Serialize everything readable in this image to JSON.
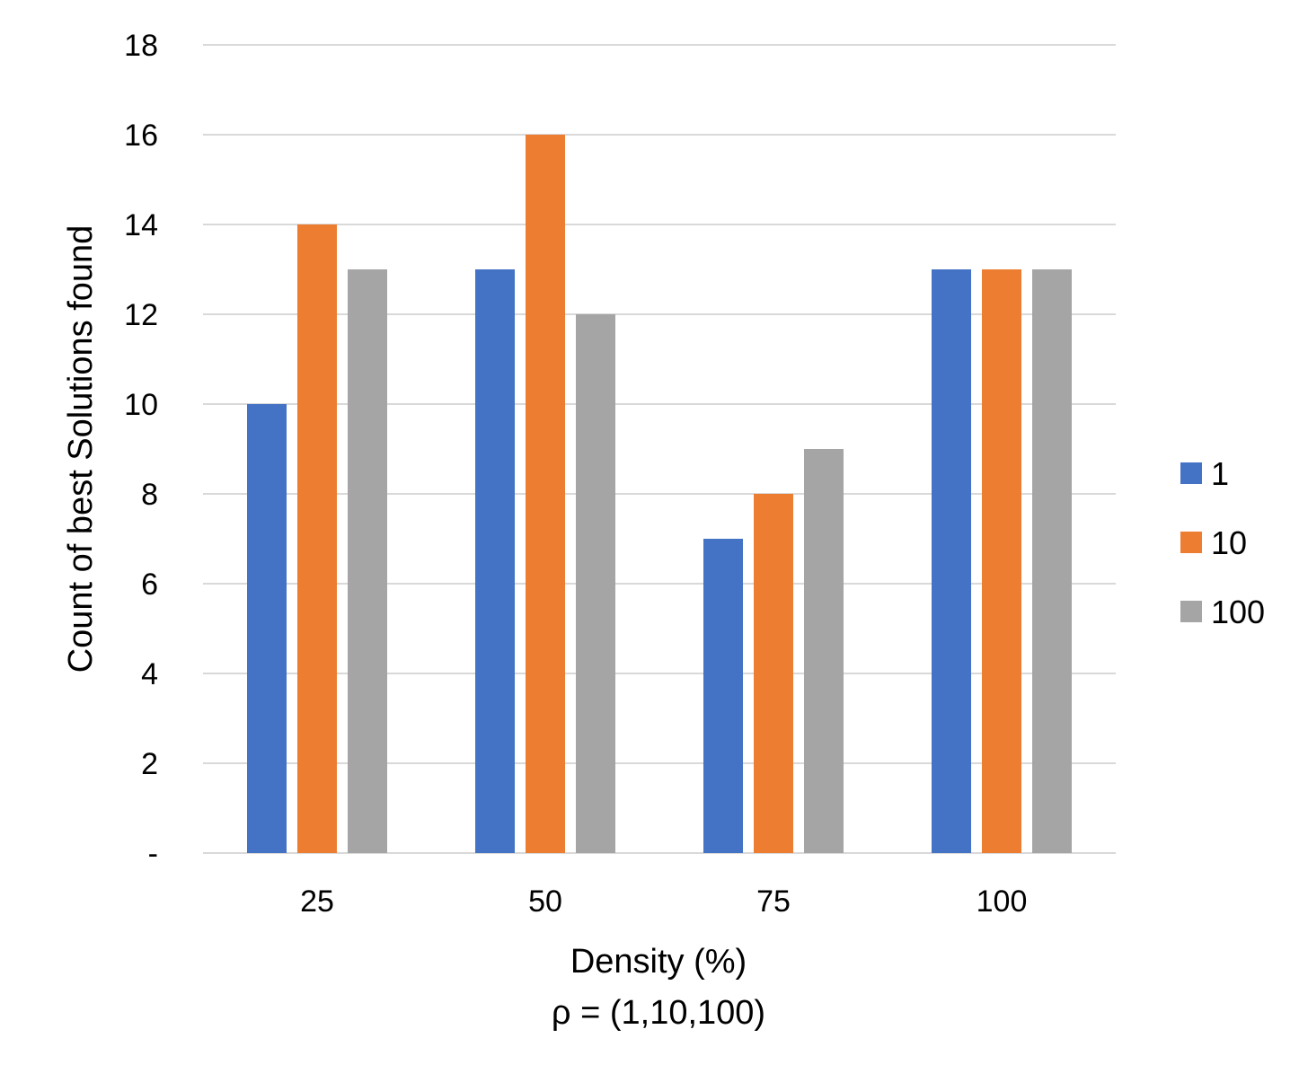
{
  "chart_data": {
    "type": "bar",
    "title": "",
    "xlabel": "Density (%)",
    "xlabel_sub": "ρ = (1,10,100)",
    "ylabel": "Count of best Solutions found",
    "categories": [
      "25",
      "50",
      "75",
      "100"
    ],
    "series": [
      {
        "name": "1",
        "values": [
          10,
          13,
          7,
          13
        ],
        "color": "#4472C4"
      },
      {
        "name": "10",
        "values": [
          14,
          16,
          8,
          13
        ],
        "color": "#ED7D31"
      },
      {
        "name": "100",
        "values": [
          13,
          12,
          9,
          13
        ],
        "color": "#A5A5A5"
      }
    ],
    "ylim": [
      0,
      18
    ],
    "yticks": [
      0,
      2,
      4,
      6,
      8,
      10,
      12,
      14,
      16,
      18
    ],
    "ytick_labels": [
      "-",
      "2",
      "4",
      "6",
      "8",
      "10",
      "12",
      "14",
      "16",
      "18"
    ],
    "grid": true,
    "gridline_color": "#D9D9D9",
    "legend_position": "right"
  }
}
